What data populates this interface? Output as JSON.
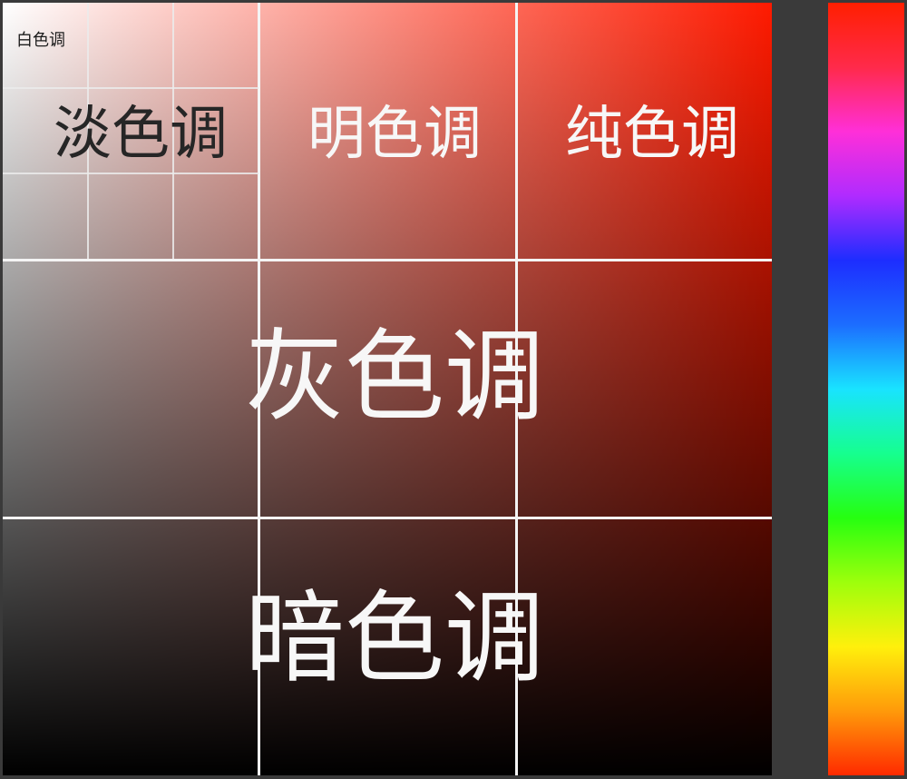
{
  "picker": {
    "base_hue_color": "#ff1a00",
    "grid_color": "#f4f4f4",
    "zones": {
      "white": "白色调",
      "pale": "淡色调",
      "light": "明色调",
      "pure": "纯色调",
      "gray": "灰色调",
      "dark": "暗色调"
    }
  },
  "hue_slider": {
    "stops": [
      "#ff1f00",
      "#ff2a4a",
      "#ff2fd8",
      "#b02bff",
      "#1d2dff",
      "#1c6dff",
      "#19e3ff",
      "#16ff8f",
      "#26ff10",
      "#9dff0c",
      "#fff00c",
      "#ff9a0a",
      "#ff2a00"
    ]
  }
}
